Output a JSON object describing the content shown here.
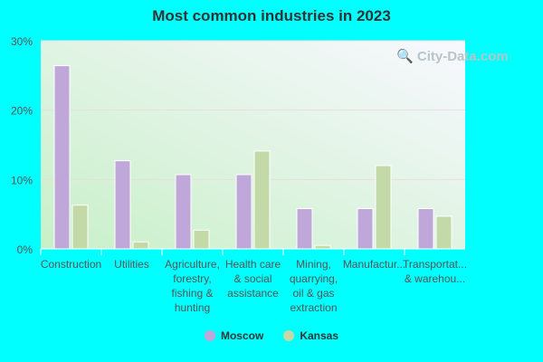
{
  "chart_data": {
    "type": "bar",
    "title": "Most common industries in 2023",
    "categories": [
      "Construction",
      "Utilities",
      "Agriculture,\nforestry,\nfishing &\nhunting",
      "Health care\n& social\nassistance",
      "Mining,\nquarrying,\noil & gas\nextraction",
      "Manufactur...",
      "Transportat...\n& warehou..."
    ],
    "series": [
      {
        "name": "Moscow",
        "color": "#bfa8d9",
        "values": [
          26.4,
          12.7,
          10.7,
          10.7,
          5.8,
          5.8,
          5.8
        ]
      },
      {
        "name": "Kansas",
        "color": "#c4d9a8",
        "values": [
          6.3,
          1.0,
          2.7,
          14.1,
          0.5,
          12.0,
          4.7
        ]
      }
    ],
    "ylim": [
      0,
      30
    ],
    "yticks": [
      "0%",
      "10%",
      "20%",
      "30%"
    ],
    "grid": true,
    "legend": "bottom"
  },
  "watermark": "City-Data.com"
}
